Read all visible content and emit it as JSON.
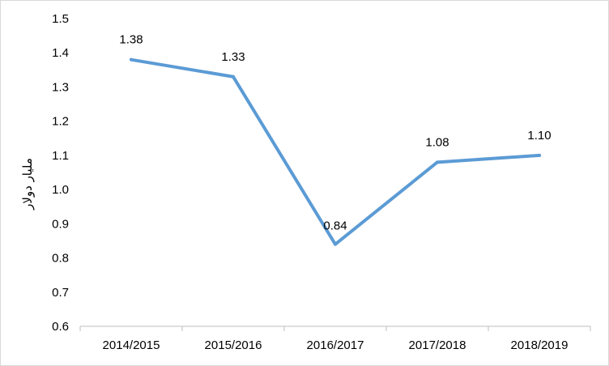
{
  "chart_data": {
    "type": "line",
    "title": "",
    "xlabel": "",
    "ylabel": "مليار دولار",
    "categories": [
      "2014/2015",
      "2015/2016",
      "2016/2017",
      "2017/2018",
      "2018/2019"
    ],
    "series": [
      {
        "values": [
          1.38,
          1.33,
          0.84,
          1.08,
          1.1
        ]
      }
    ],
    "data_labels": [
      "1.38",
      "1.33",
      "0.84",
      "1.08",
      "1.10"
    ],
    "y_ticks": [
      "0.6",
      "0.7",
      "0.8",
      "0.9",
      "1.0",
      "1.1",
      "1.2",
      "1.3",
      "1.4",
      "1.5"
    ],
    "ylim": [
      0.6,
      1.5
    ],
    "grid": false,
    "legend": "none",
    "colors": {
      "line": "#5b9bd5",
      "axis": "#bfbfbf",
      "border": "#d9d9d9"
    }
  }
}
